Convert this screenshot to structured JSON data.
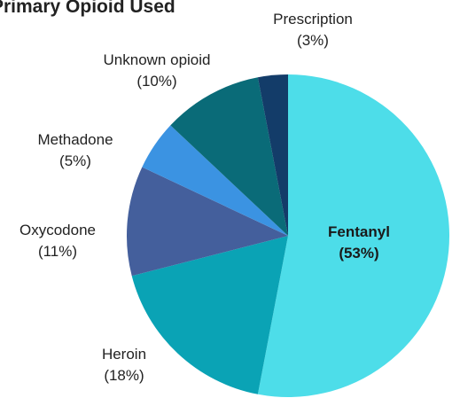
{
  "chart_data": {
    "type": "pie",
    "title": "Primary Opioid Used",
    "categories": [
      "Fentanyl",
      "Heroin",
      "Oxycodone",
      "Methadone",
      "Unknown opioid",
      "Prescription"
    ],
    "values": [
      53,
      18,
      11,
      5,
      10,
      3
    ],
    "value_labels": [
      "(53%)",
      "(18%)",
      "(11%)",
      "(5%)",
      "(10%)",
      "(3%)"
    ],
    "colors": [
      "#4ddde9",
      "#0aa3b5",
      "#445f9c",
      "#3b93e2",
      "#0a6b78",
      "#133c69"
    ]
  }
}
